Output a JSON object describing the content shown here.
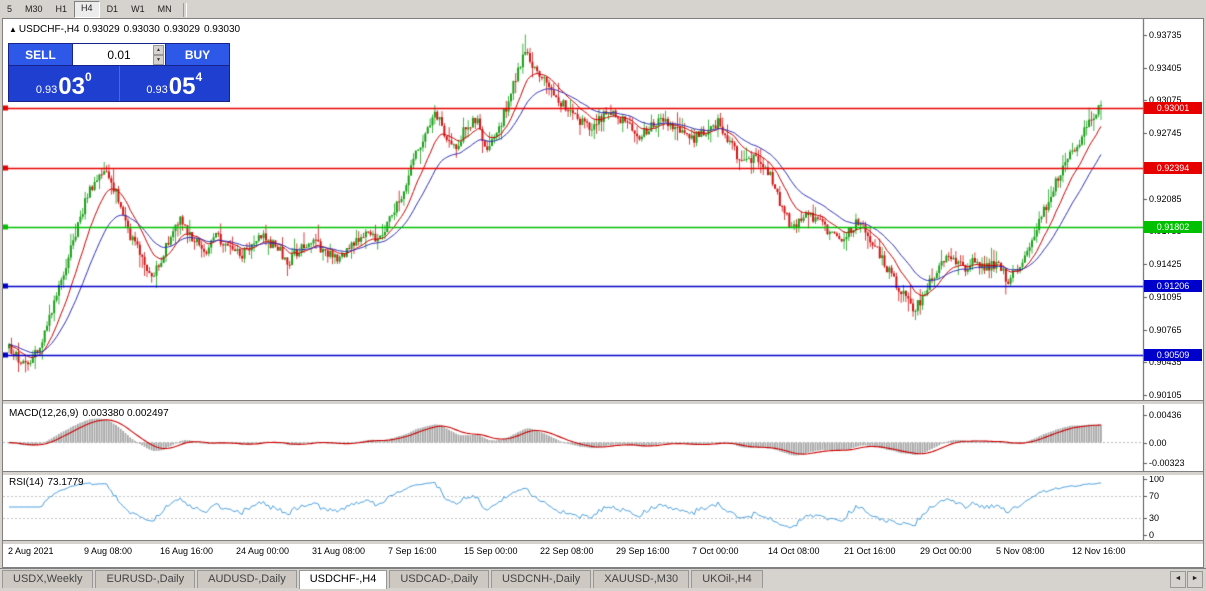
{
  "toolbar": {
    "timeframes": [
      "5",
      "M30",
      "H1",
      "H4",
      "D1",
      "W1",
      "MN"
    ],
    "active_timeframe": "H4"
  },
  "chart": {
    "header": {
      "icon": "▲",
      "symbol": "USDCHF-,H4",
      "open": "0.93029",
      "high": "0.93030",
      "low": "0.93029",
      "close": "0.93030"
    },
    "trade_panel": {
      "sell_label": "SELL",
      "buy_label": "BUY",
      "lot_value": "0.01",
      "spin_up_icon": "▲",
      "spin_down_icon": "▼",
      "sell_price_prefix": "0.93",
      "sell_price_big": "03",
      "sell_price_sup": "0",
      "buy_price_prefix": "0.93",
      "buy_price_big": "05",
      "buy_price_sup": "4"
    }
  },
  "chart_data": {
    "type": "candlestick",
    "symbol": "USDCHF",
    "timeframe": "H4",
    "current_ohlc": {
      "open": 0.93029,
      "high": 0.9303,
      "low": 0.93029,
      "close": 0.9303
    },
    "bid": 0.9303,
    "ask": 0.93054,
    "bars": 460,
    "y_axis_ticks": [
      0.93735,
      0.93405,
      0.93075,
      0.92745,
      0.92415,
      0.92085,
      0.91755,
      0.91425,
      0.91095,
      0.90765,
      0.90435,
      0.90105
    ],
    "candle_up_color": "#18a018",
    "candle_down_color": "#d41414",
    "ma_fast": {
      "period": 12,
      "color": "#cc0000"
    },
    "ma_slow": {
      "period": 26,
      "color": "#3030b8"
    },
    "horizontal_lines": [
      {
        "price": 0.93001,
        "label": "0.93001",
        "color": "#e60000",
        "kind": "resistance"
      },
      {
        "price": 0.92394,
        "label": "0.92394",
        "color": "#e60000",
        "kind": "resistance"
      },
      {
        "price": 0.91802,
        "label": "0.91802",
        "color": "#00c000",
        "kind": "support"
      },
      {
        "price": 0.91206,
        "label": "0.91206",
        "color": "#0000cc",
        "kind": "support"
      },
      {
        "price": 0.90509,
        "label": "0.90509",
        "color": "#0000cc",
        "kind": "support"
      }
    ],
    "price_path": [
      [
        0.0,
        0.906
      ],
      [
        0.009,
        0.9045
      ],
      [
        0.018,
        0.9038
      ],
      [
        0.029,
        0.9063
      ],
      [
        0.043,
        0.911
      ],
      [
        0.057,
        0.916
      ],
      [
        0.07,
        0.9205
      ],
      [
        0.08,
        0.923
      ],
      [
        0.089,
        0.9238
      ],
      [
        0.098,
        0.9215
      ],
      [
        0.107,
        0.918
      ],
      [
        0.121,
        0.915
      ],
      [
        0.132,
        0.913
      ],
      [
        0.144,
        0.916
      ],
      [
        0.156,
        0.919
      ],
      [
        0.167,
        0.917
      ],
      [
        0.18,
        0.9153
      ],
      [
        0.19,
        0.917
      ],
      [
        0.201,
        0.916
      ],
      [
        0.212,
        0.9152
      ],
      [
        0.223,
        0.9162
      ],
      [
        0.233,
        0.917
      ],
      [
        0.244,
        0.916
      ],
      [
        0.256,
        0.9145
      ],
      [
        0.267,
        0.916
      ],
      [
        0.278,
        0.917
      ],
      [
        0.288,
        0.9155
      ],
      [
        0.299,
        0.9147
      ],
      [
        0.313,
        0.916
      ],
      [
        0.327,
        0.9175
      ],
      [
        0.339,
        0.9165
      ],
      [
        0.348,
        0.9185
      ],
      [
        0.359,
        0.921
      ],
      [
        0.37,
        0.9245
      ],
      [
        0.381,
        0.9275
      ],
      [
        0.391,
        0.9297
      ],
      [
        0.4,
        0.927
      ],
      [
        0.409,
        0.9257
      ],
      [
        0.418,
        0.928
      ],
      [
        0.428,
        0.929
      ],
      [
        0.437,
        0.9257
      ],
      [
        0.446,
        0.927
      ],
      [
        0.455,
        0.93
      ],
      [
        0.464,
        0.933
      ],
      [
        0.472,
        0.9358
      ],
      [
        0.478,
        0.9345
      ],
      [
        0.487,
        0.933
      ],
      [
        0.498,
        0.9315
      ],
      [
        0.51,
        0.93
      ],
      [
        0.522,
        0.9288
      ],
      [
        0.533,
        0.9278
      ],
      [
        0.542,
        0.929
      ],
      [
        0.553,
        0.9295
      ],
      [
        0.565,
        0.9285
      ],
      [
        0.577,
        0.927
      ],
      [
        0.588,
        0.928
      ],
      [
        0.599,
        0.929
      ],
      [
        0.611,
        0.928
      ],
      [
        0.626,
        0.9268
      ],
      [
        0.638,
        0.9278
      ],
      [
        0.65,
        0.9285
      ],
      [
        0.661,
        0.9262
      ],
      [
        0.672,
        0.9246
      ],
      [
        0.684,
        0.9249
      ],
      [
        0.696,
        0.9235
      ],
      [
        0.707,
        0.92
      ],
      [
        0.718,
        0.9178
      ],
      [
        0.73,
        0.9195
      ],
      [
        0.742,
        0.9185
      ],
      [
        0.753,
        0.917
      ],
      [
        0.765,
        0.9168
      ],
      [
        0.776,
        0.9185
      ],
      [
        0.787,
        0.9172
      ],
      [
        0.798,
        0.915
      ],
      [
        0.809,
        0.9128
      ],
      [
        0.821,
        0.911
      ],
      [
        0.83,
        0.9096
      ],
      [
        0.84,
        0.9118
      ],
      [
        0.851,
        0.914
      ],
      [
        0.862,
        0.9148
      ],
      [
        0.873,
        0.9138
      ],
      [
        0.885,
        0.9145
      ],
      [
        0.894,
        0.9138
      ],
      [
        0.905,
        0.9142
      ],
      [
        0.916,
        0.9125
      ],
      [
        0.925,
        0.914
      ],
      [
        0.936,
        0.9165
      ],
      [
        0.947,
        0.9195
      ],
      [
        0.959,
        0.9225
      ],
      [
        0.971,
        0.925
      ],
      [
        0.982,
        0.927
      ],
      [
        0.993,
        0.929
      ],
      [
        1.0,
        0.9303
      ]
    ],
    "wick_pins": [
      [
        0.018,
        "low",
        0.9035
      ],
      [
        0.089,
        "high",
        0.9241
      ],
      [
        0.472,
        "high",
        0.9374
      ],
      [
        0.83,
        "low",
        0.9086
      ],
      [
        1.0,
        "high",
        0.9305
      ]
    ],
    "indicators": {
      "macd": {
        "label": "MACD(12,26,9)",
        "values_text": "0.003380 0.002497",
        "axis_ticks": [
          "0.00436",
          "0.00",
          "-0.00323"
        ],
        "histogram_color": "#a8a8a8",
        "signal_color": "#cc0000"
      },
      "rsi": {
        "label": "RSI(14)",
        "value_text": "73.1779",
        "axis_ticks": [
          "100",
          "70",
          "30",
          "0"
        ],
        "levels": [
          70,
          30
        ],
        "line_color": "#4a9ede"
      }
    },
    "time_labels": [
      "2 Aug 2021",
      "9 Aug 08:00",
      "16 Aug 16:00",
      "24 Aug 00:00",
      "31 Aug 08:00",
      "7 Sep 16:00",
      "15 Sep 00:00",
      "22 Sep 08:00",
      "29 Sep 16:00",
      "7 Oct 00:00",
      "14 Oct 08:00",
      "21 Oct 16:00",
      "29 Oct 00:00",
      "5 Nov 08:00",
      "12 Nov 16:00"
    ]
  },
  "tabs": {
    "items": [
      "USDX,Weekly",
      "EURUSD-,Daily",
      "AUDUSD-,Daily",
      "USDCHF-,H4",
      "USDCAD-,Daily",
      "USDCNH-,Daily",
      "XAUUSD-,M30",
      "UKOil-,H4"
    ],
    "active": "USDCHF-,H4",
    "scroll_left_icon": "◄",
    "scroll_right_icon": "►"
  }
}
